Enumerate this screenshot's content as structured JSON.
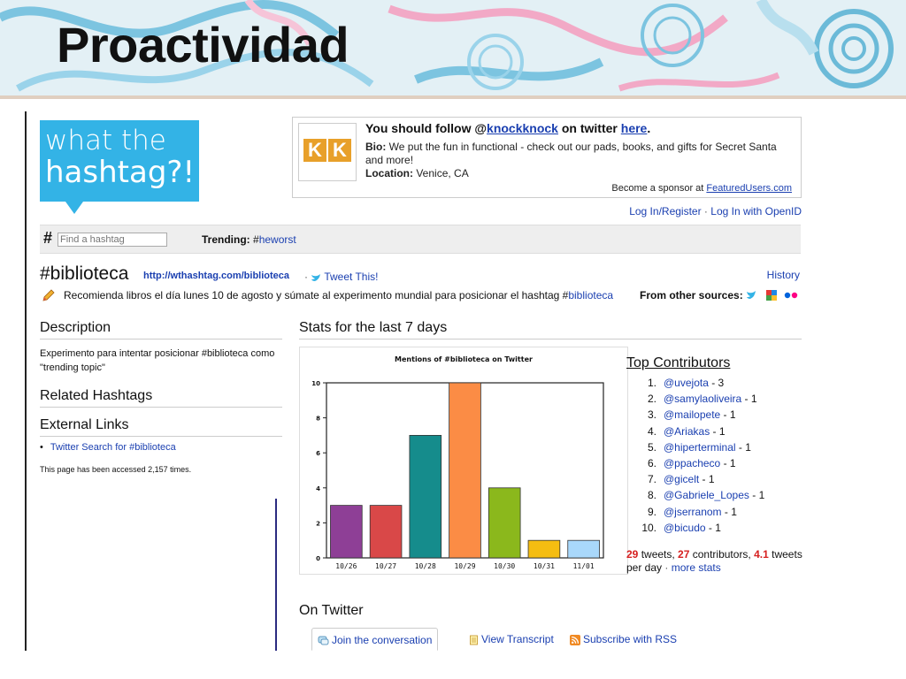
{
  "slide": {
    "title": "Proactividad"
  },
  "logo": {
    "line1": "what the",
    "line2": "hashtag?!"
  },
  "sponsor": {
    "follow_prefix": "You should follow @",
    "follow_user": "knockknock",
    "follow_mid": " on twitter ",
    "follow_link": "here",
    "follow_end": ".",
    "bio_label": "Bio:",
    "bio": " We put the fun in functional - check out our pads, books, and gifts for Secret Santa and more!",
    "location_label": "Location:",
    "location": " Venice, CA",
    "become_prefix": "Become a sponsor at ",
    "become_link": "FeaturedUsers.com",
    "kk_letters": [
      "K",
      "K"
    ]
  },
  "auth": {
    "login": "Log In/Register",
    "sep": " · ",
    "openid": "Log In with OpenID"
  },
  "search": {
    "symbol": "#",
    "placeholder": "Find a hashtag",
    "trending_label": "Trending:",
    "trending_hash": " #",
    "trending_tag": "heworst"
  },
  "hashtag": {
    "name": "#biblioteca",
    "url": "http://wthashtag.com/biblioteca",
    "sep": " · ",
    "tweet_this": "Tweet This!",
    "history": "History",
    "recommend_text": "Recomienda libros el día lunes 10 de agosto y súmate al experimento mundial para posicionar el hashtag #",
    "recommend_tag": "biblioteca",
    "other_sources": "From other sources:"
  },
  "left": {
    "description_title": "Description",
    "description": "Experimento para intentar posicionar #biblioteca como \"trending topic\"",
    "related_title": "Related Hashtags",
    "external_title": "External Links",
    "external_link": "Twitter Search for #biblioteca",
    "accessed": "This page has been accessed 2,157 times."
  },
  "stats": {
    "title": "Stats for the last 7 days"
  },
  "chart_data": {
    "type": "bar",
    "title": "Mentions of #biblioteca on Twitter",
    "categories": [
      "10/26",
      "10/27",
      "10/28",
      "10/29",
      "10/30",
      "10/31",
      "11/01"
    ],
    "values": [
      3,
      3,
      7,
      10,
      4,
      1,
      1
    ],
    "colors": [
      "#8e3f96",
      "#d94848",
      "#158c8c",
      "#fb8c45",
      "#8bb81c",
      "#f5bd11",
      "#a9d8fb"
    ],
    "yticks": [
      0,
      2,
      4,
      6,
      8,
      10
    ],
    "ylim": [
      0,
      10
    ],
    "grid": false
  },
  "contributors": {
    "title": "Top Contributors",
    "items": [
      {
        "num": "1.",
        "user": "@uvejota",
        "count": " - 3"
      },
      {
        "num": "2.",
        "user": "@samylaoliveira",
        "count": " - 1"
      },
      {
        "num": "3.",
        "user": "@mailopete",
        "count": " - 1"
      },
      {
        "num": "4.",
        "user": "@Ariakas",
        "count": " - 1"
      },
      {
        "num": "5.",
        "user": "@hiperterminal",
        "count": " - 1"
      },
      {
        "num": "6.",
        "user": "@ppacheco",
        "count": " - 1"
      },
      {
        "num": "7.",
        "user": "@gicelt",
        "count": " - 1"
      },
      {
        "num": "8.",
        "user": "@Gabriele_Lopes",
        "count": " - 1"
      },
      {
        "num": "9.",
        "user": "@jserranom",
        "count": " - 1"
      },
      {
        "num": "10.",
        "user": "@bicudo",
        "count": " - 1"
      }
    ],
    "tweets": "29",
    "tweets_label": " tweets, ",
    "contribs": "27",
    "contribs_label": " contributors, ",
    "per_day": "4.1",
    "per_day_label": " tweets per day",
    "sep": " · ",
    "more_stats": "more stats"
  },
  "twitter": {
    "title": "On Twitter",
    "tab_join": "Join the conversation",
    "tab_transcript": "View Transcript",
    "tab_rss": "Subscribe with RSS"
  }
}
